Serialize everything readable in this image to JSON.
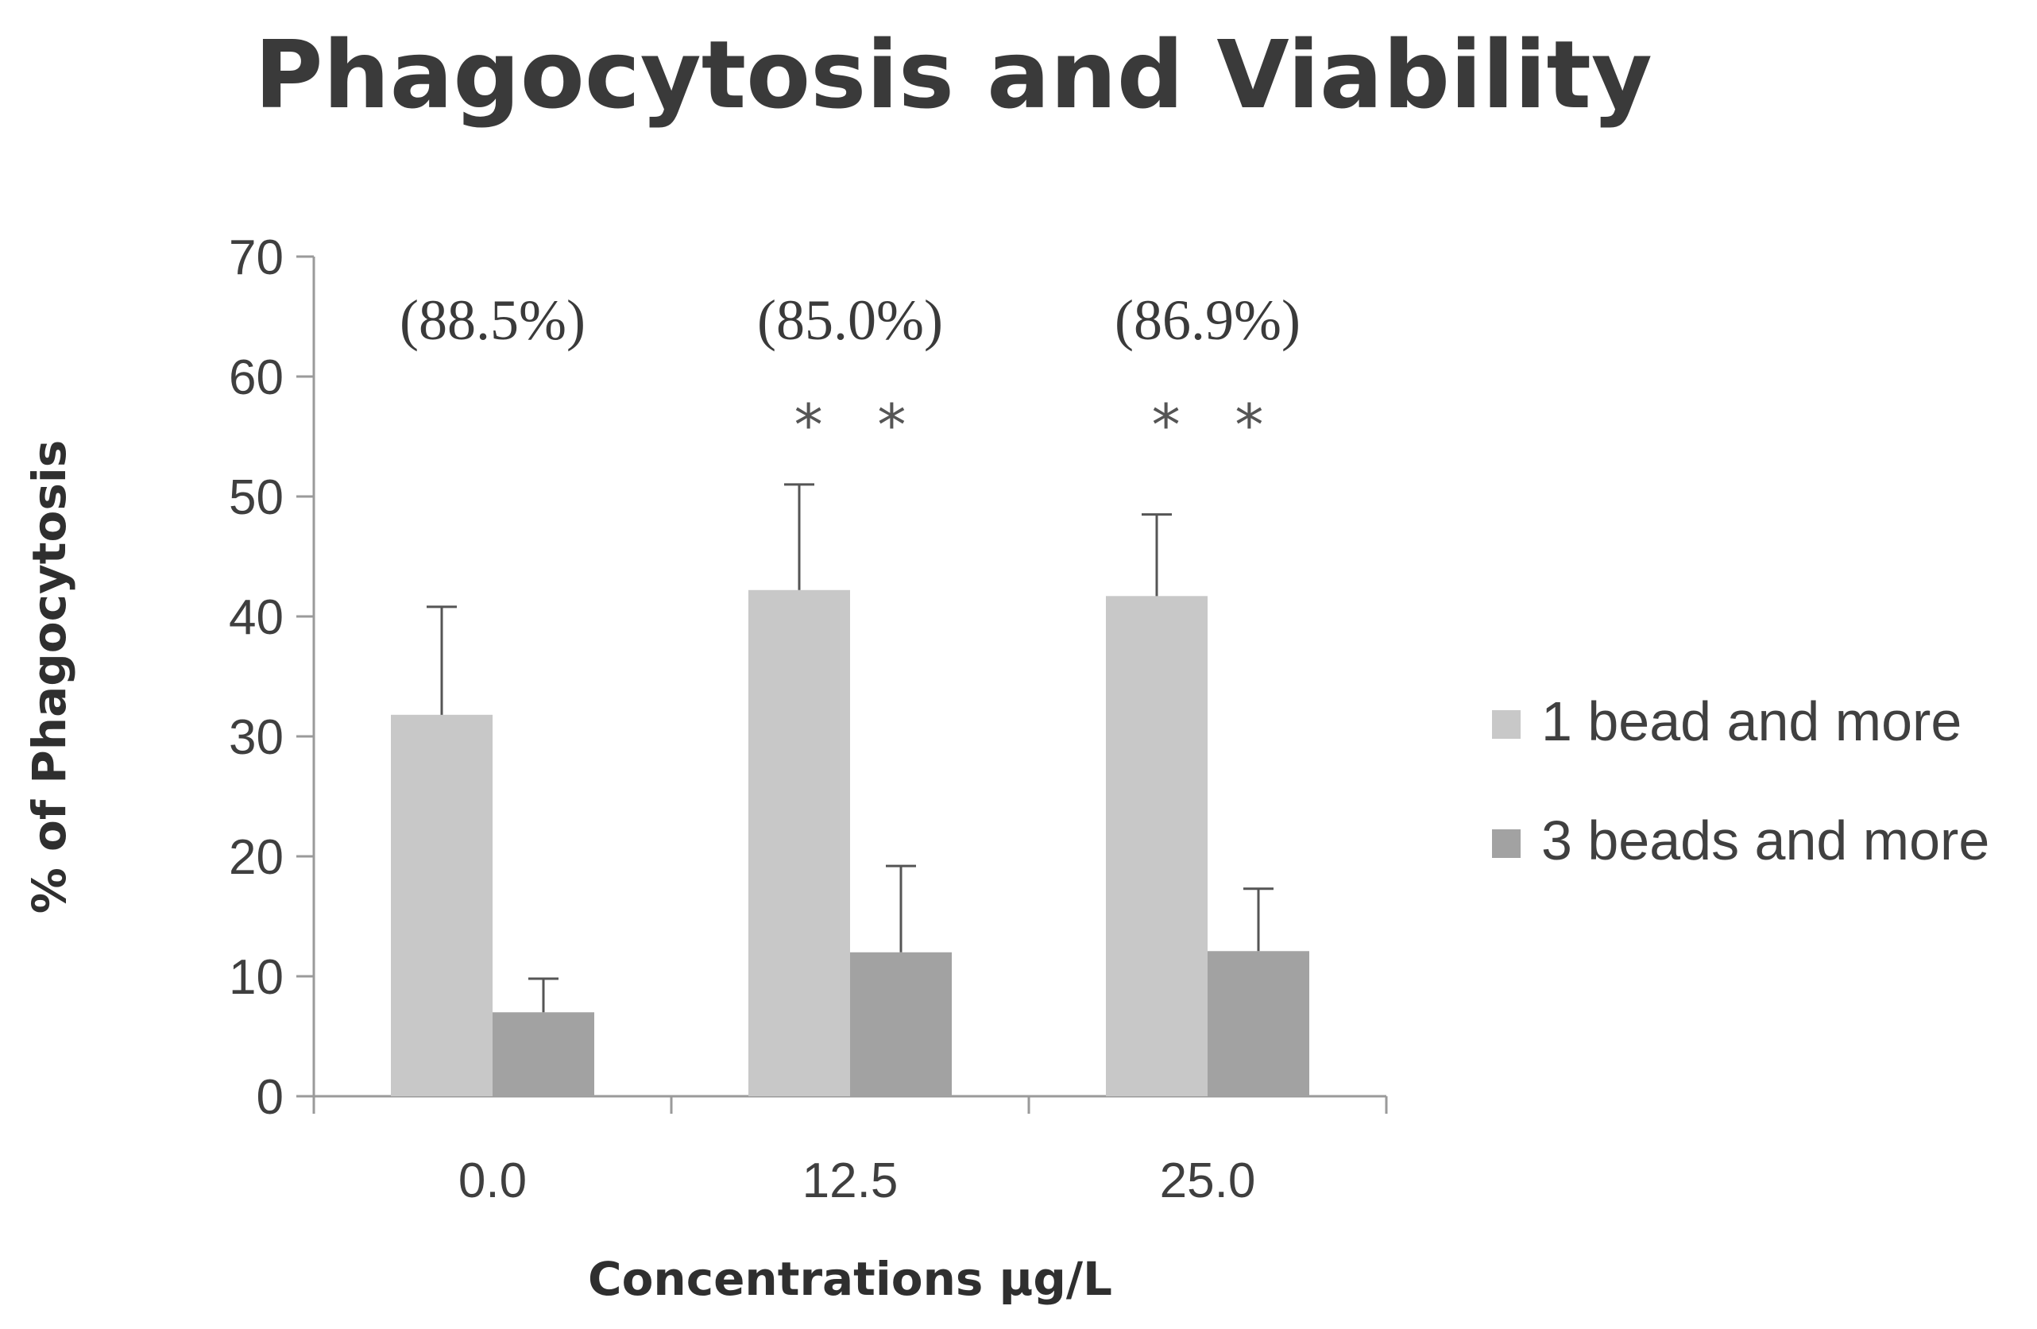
{
  "chart_data": {
    "type": "bar",
    "title": "Phagocytosis and Viability",
    "xlabel": "Concentrations μg/L",
    "ylabel": "% of Phagocytosis",
    "categories": [
      "0.0",
      "12.5",
      "25.0"
    ],
    "ylim": [
      0,
      70
    ],
    "yticks": [
      0,
      10,
      20,
      30,
      40,
      50,
      60,
      70
    ],
    "grid": false,
    "legend_position": "right",
    "series": [
      {
        "name": "1 bead and more",
        "values": [
          31.8,
          42.2,
          41.7
        ],
        "errors": [
          9.0,
          8.8,
          6.8
        ],
        "color": "#c8c8c8"
      },
      {
        "name": "3 beads and more",
        "values": [
          7.0,
          12.0,
          12.1
        ],
        "errors": [
          2.8,
          7.2,
          5.2
        ],
        "color": "#a2a2a2"
      }
    ],
    "viability_labels": [
      "(88.5%)",
      "(85.0%)",
      "(86.9%)"
    ],
    "significance_markers": [
      "",
      "*   *",
      "*   *"
    ]
  }
}
